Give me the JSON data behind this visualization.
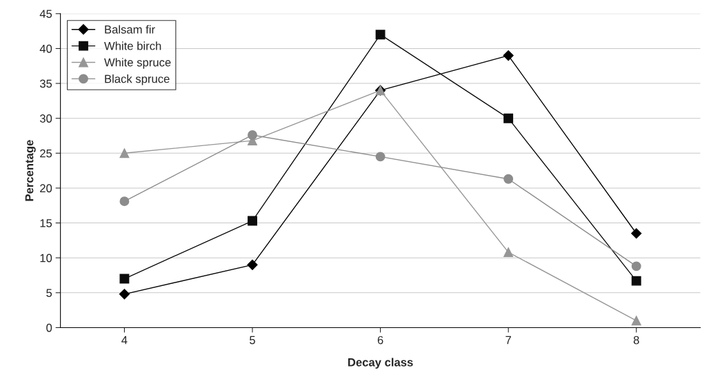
{
  "chart_data": {
    "type": "line",
    "xlabel": "Decay class",
    "ylabel": "Percentage",
    "categories": [
      "4",
      "5",
      "6",
      "7",
      "8"
    ],
    "series": [
      {
        "name": "Balsam fir",
        "color": "#000000",
        "marker": "diamond",
        "values": [
          4.8,
          9,
          34,
          39,
          13.5
        ]
      },
      {
        "name": "White birch",
        "color": "#0c0c0c",
        "marker": "square",
        "values": [
          7,
          15.3,
          42,
          30,
          6.7
        ]
      },
      {
        "name": "White spruce",
        "color": "#969696",
        "marker": "triangle",
        "values": [
          25,
          26.8,
          34,
          10.8,
          1
        ]
      },
      {
        "name": "Black spruce",
        "color": "#8c8c8c",
        "marker": "circle",
        "values": [
          18.1,
          27.6,
          24.5,
          21.3,
          8.8
        ]
      }
    ],
    "ylim": [
      0,
      45
    ],
    "yticks": [
      0,
      5,
      10,
      15,
      20,
      25,
      30,
      35,
      40,
      45
    ],
    "grid": "y",
    "legend": "top left",
    "line_style": "solid"
  }
}
